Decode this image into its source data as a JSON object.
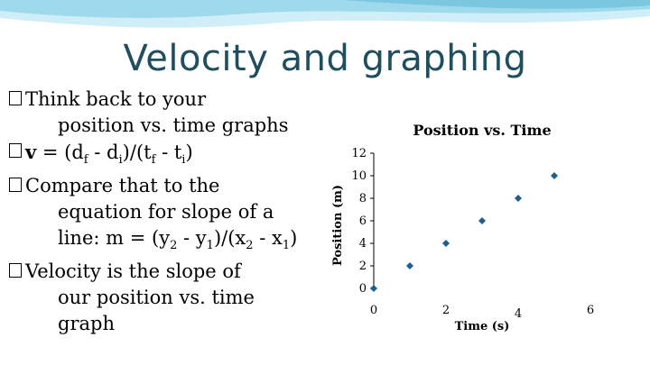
{
  "slide": {
    "title": "Velocity and graphing",
    "bullets": [
      {
        "lines": [
          "Think back to your",
          "position vs. time graphs"
        ]
      },
      {
        "v": "v",
        "eq": " = (d",
        "f": "f",
        "mid": " - d",
        "i": "i",
        "rest": ")/(t",
        "f2": "f",
        "mid2": " - t",
        "i2": "i",
        "end": ")"
      },
      {
        "lines": [
          "Compare that to the",
          "equation for slope of a"
        ],
        "eq_prefix": "line: m = (y",
        "s2": "2",
        "eq_mid": " - y",
        "s1": "1",
        "eq_mid2": ")/(x",
        "s3": "2",
        "eq_mid3": " - x",
        "s4": "1",
        "eq_end": ")"
      },
      {
        "lines": [
          "Velocity is the slope of",
          "our position vs. time",
          "graph"
        ]
      }
    ]
  },
  "colors": {
    "title": "#1f4e5f",
    "band_dark": "#7cc7e0",
    "band_light": "#cfeef8",
    "series": "#1f5f8b"
  },
  "chart_data": {
    "type": "scatter",
    "title": "Position vs. Time",
    "xlabel": "Time (s)",
    "ylabel": "Position (m)",
    "xlim": [
      0,
      6
    ],
    "ylim": [
      0,
      12
    ],
    "x_ticks": [
      "0",
      "2",
      "4",
      "6"
    ],
    "y_ticks": [
      "0",
      "2",
      "4",
      "6",
      "8",
      "10",
      "12"
    ],
    "series": [
      {
        "x": [
          0,
          1,
          2,
          3,
          4,
          5
        ],
        "y": [
          0,
          2,
          4,
          6,
          8,
          10
        ]
      }
    ]
  }
}
